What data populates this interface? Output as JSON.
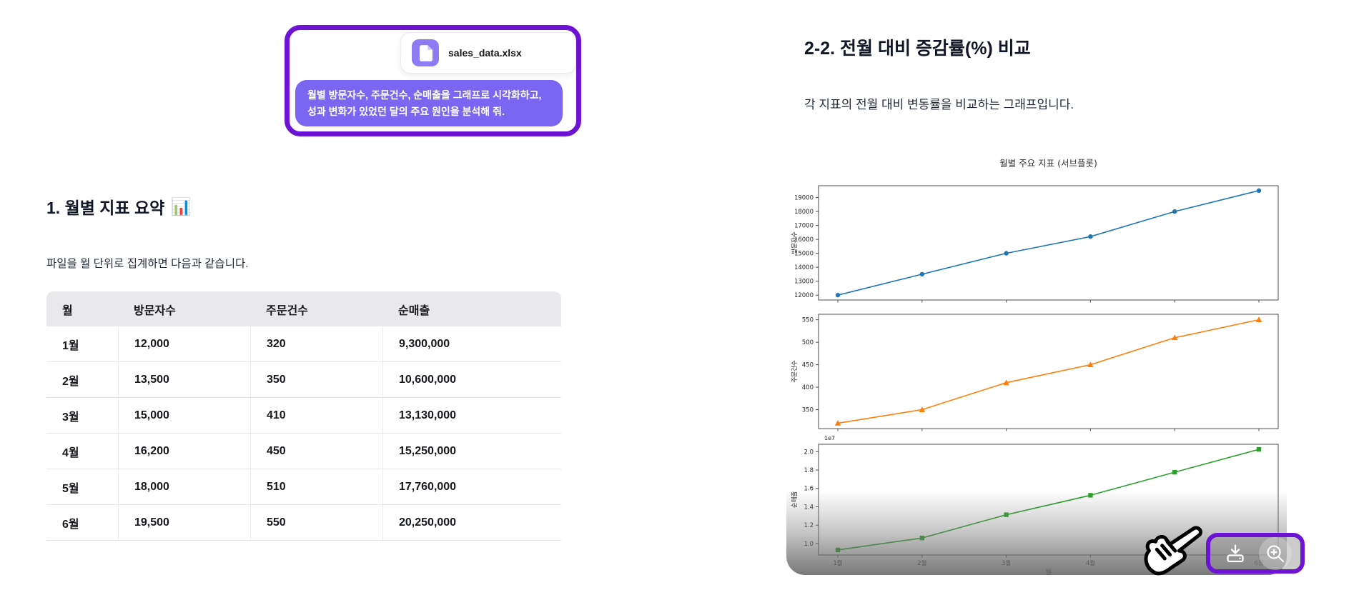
{
  "colors": {
    "accent_purple": "#6d13d4",
    "bubble_purple": "#7a66f0",
    "file_icon_purple": "#8d7bf4",
    "table_header_gray": "#e9e9eb",
    "line_blue": "#1f77b4",
    "line_orange": "#ff7f0e",
    "line_green": "#2ca02c"
  },
  "attachment": {
    "file_name": "sales_data.xlsx",
    "message_line1": "월별 방문자수, 주문건수, 순매출을 그래프로 시각화하고,",
    "message_line2": "성과 변화가 있었던 달의 주요 원인을 분석해 줘."
  },
  "left_section": {
    "heading": "1. 월별 지표 요약",
    "heading_emoji": "📊",
    "description": "파일을 월 단위로 집계하면 다음과 같습니다.",
    "table": {
      "headers": [
        "월",
        "방문자수",
        "주문건수",
        "순매출"
      ],
      "rows": [
        [
          "1월",
          "12,000",
          "320",
          "9,300,000"
        ],
        [
          "2월",
          "13,500",
          "350",
          "10,600,000"
        ],
        [
          "3월",
          "15,000",
          "410",
          "13,130,000"
        ],
        [
          "4월",
          "16,200",
          "450",
          "15,250,000"
        ],
        [
          "5월",
          "18,000",
          "510",
          "17,760,000"
        ],
        [
          "6월",
          "19,500",
          "550",
          "20,250,000"
        ]
      ]
    }
  },
  "right_section": {
    "heading": "2-2. 전월 대비 증감률(%) 비교",
    "description": "각 지표의 전월 대비 변동률을 비교하는 그래프입니다."
  },
  "chart_data": {
    "type": "line",
    "title": "월별 주요 지표 (서브플롯)",
    "categories": [
      "1월",
      "2월",
      "3월",
      "4월",
      "5월",
      "6월"
    ],
    "xlabel": "월",
    "grid": false,
    "legend": "none",
    "subplots": [
      {
        "name": "방문자수",
        "ylabel": "방문자수",
        "color": "#1f77b4",
        "marker": "circle",
        "values": [
          12000,
          13500,
          15000,
          16200,
          18000,
          19500
        ],
        "yticks": [
          12000,
          13000,
          14000,
          15000,
          16000,
          17000,
          18000,
          19000
        ],
        "ylim": [
          11650,
          19850
        ]
      },
      {
        "name": "주문건수",
        "ylabel": "주문건수",
        "color": "#ff7f0e",
        "marker": "triangle",
        "values": [
          320,
          350,
          410,
          450,
          510,
          550
        ],
        "yticks": [
          350,
          400,
          450,
          500,
          550
        ],
        "ylim": [
          308,
          562
        ]
      },
      {
        "name": "순매출",
        "ylabel": "순매출",
        "color": "#2ca02c",
        "marker": "square",
        "values": [
          9300000,
          10600000,
          13130000,
          15250000,
          17760000,
          20250000
        ],
        "yticks": [
          10000000,
          12000000,
          14000000,
          16000000,
          18000000,
          20000000
        ],
        "ytick_labels": [
          "1.0",
          "1.2",
          "1.4",
          "1.6",
          "1.8",
          "2.0"
        ],
        "offset_text": "1e7",
        "ylim": [
          8750000,
          20800000
        ]
      }
    ]
  },
  "chart_toolbar": {
    "download_icon": "download-icon",
    "zoom_icon": "zoom-in-icon"
  }
}
